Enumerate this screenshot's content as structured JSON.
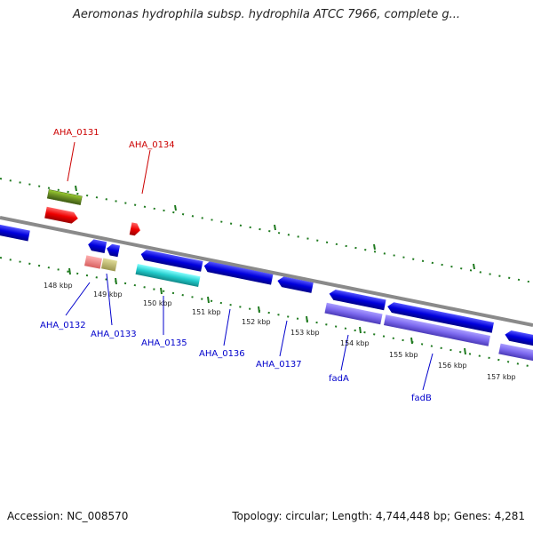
{
  "title": "Aeromonas hydrophila subsp. hydrophila ATCC 7966, complete g...",
  "footer": {
    "accession": "Accession: NC_008570",
    "summary": "Topology: circular; Length: 4,744,448 bp; Genes: 4,281"
  },
  "colors": {
    "upper_label": "#cc0000",
    "lower_label": "#0000cc",
    "backbone": "#8a8a8a",
    "tick": "#1f7a1f",
    "cds_blue": "#0000dd",
    "cds_red": "#ee0000",
    "olive": "#6b8e23",
    "cyan": "#22cccc",
    "slate": "#7b68ee",
    "pink": "#f08080",
    "tan": "#bdb76b"
  },
  "ticks": [
    "148 kbp",
    "149 kbp",
    "150 kbp",
    "151 kbp",
    "152 kbp",
    "153 kbp",
    "154 kbp",
    "155 kbp",
    "156 kbp",
    "157 kbp"
  ],
  "labels": {
    "aha_0131": "AHA_0131",
    "aha_0134": "AHA_0134",
    "aha_0132": "AHA_0132",
    "aha_0133": "AHA_0133",
    "aha_0135": "AHA_0135",
    "aha_0136": "AHA_0136",
    "aha_0137": "AHA_0137",
    "fada": "fadA",
    "fadb": "fadB"
  }
}
